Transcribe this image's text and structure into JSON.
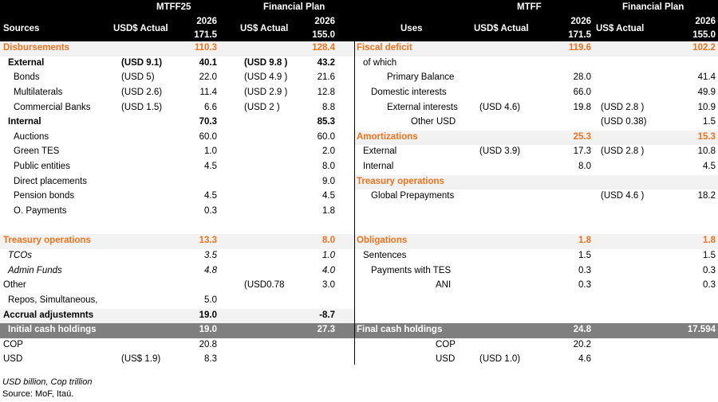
{
  "left": {
    "header": {
      "group1": "MTFF25",
      "group2": "Financial Plan",
      "label": "Sources",
      "col_actual1": "USD$ Actual",
      "col_year1": "2026",
      "col_total1": "171.5",
      "col_actual2": "US$ Actual",
      "col_year2": "2026",
      "col_total2": "155.0"
    },
    "rows": [
      {
        "label": "Disbursements",
        "a1": "",
        "v1": "110.3",
        "a2": "",
        "v2": "128.4",
        "style": "orange shade",
        "indent": 0
      },
      {
        "label": "External",
        "a1": "(USD 9.1)",
        "v1": "40.1",
        "a2": "(USD 9.8 )",
        "v2": "43.2",
        "style": "bold",
        "indent": 1
      },
      {
        "label": "Bonds",
        "a1": "(USD 5)",
        "v1": "22.0",
        "a2": "(USD 4.9 )",
        "v2": "21.6",
        "style": "",
        "indent": 2
      },
      {
        "label": "Multilaterals",
        "a1": "(USD 2.6)",
        "v1": "11.4",
        "a2": "(USD 2.9 )",
        "v2": "12.8",
        "style": "",
        "indent": 2
      },
      {
        "label": "Commercial Banks",
        "a1": "(USD 1.5)",
        "v1": "6.6",
        "a2": "(USD 2 )",
        "v2": "8.8",
        "style": "",
        "indent": 2
      },
      {
        "label": "Internal",
        "a1": "",
        "v1": "70.3",
        "a2": "",
        "v2": "85.3",
        "style": "bold",
        "indent": 1
      },
      {
        "label": "Auctions",
        "a1": "",
        "v1": "60.0",
        "a2": "",
        "v2": "60.0",
        "style": "",
        "indent": 2
      },
      {
        "label": "Green TES",
        "a1": "",
        "v1": "1.0",
        "a2": "",
        "v2": "2.0",
        "style": "",
        "indent": 2
      },
      {
        "label": "Public entities",
        "a1": "",
        "v1": "4.5",
        "a2": "",
        "v2": "8.0",
        "style": "",
        "indent": 2
      },
      {
        "label": "Direct placements",
        "a1": "",
        "v1": "",
        "a2": "",
        "v2": "9.0",
        "style": "",
        "indent": 2
      },
      {
        "label": "Pension bonds",
        "a1": "",
        "v1": "4.5",
        "a2": "",
        "v2": "4.5",
        "style": "",
        "indent": 2
      },
      {
        "label": "O. Payments",
        "a1": "",
        "v1": "0.3",
        "a2": "",
        "v2": "1.8",
        "style": "",
        "indent": 2
      },
      {
        "label": "",
        "a1": "",
        "v1": "",
        "a2": "",
        "v2": "",
        "style": "",
        "indent": 0
      },
      {
        "label": "Treasury operations",
        "a1": "",
        "v1": "13.3",
        "a2": "",
        "v2": "8.0",
        "style": "orange shade",
        "indent": 0
      },
      {
        "label": "TCOs",
        "a1": "",
        "v1": "3.5",
        "a2": "",
        "v2": "1.0",
        "style": "ital",
        "indent": 1
      },
      {
        "label": "Admin Funds",
        "a1": "",
        "v1": "4.8",
        "a2": "",
        "v2": "4.0",
        "style": "ital",
        "indent": 1
      },
      {
        "label": "Other",
        "a1": "",
        "v1": "",
        "a2": "(USD0.78",
        "v2": "3.0",
        "style": "",
        "indent": 0
      },
      {
        "label": "Repos, Simultaneous,",
        "a1": "",
        "v1": "5.0",
        "a2": "",
        "v2": "",
        "style": "",
        "indent": 1
      },
      {
        "label": "Accrual adjustemnts",
        "a1": "",
        "v1": "19.0",
        "a2": "",
        "v2": "-8.7",
        "style": "bold shade",
        "indent": 0
      },
      {
        "label": "Initial cash holdings",
        "a1": "",
        "v1": "19.0",
        "a2": "",
        "v2": "27.3",
        "style": "grey",
        "indent": 1
      },
      {
        "label": "COP",
        "a1": "",
        "v1": "20.8",
        "a2": "",
        "v2": "",
        "style": "",
        "indent": 0
      },
      {
        "label": "USD",
        "a1": "(US$ 1.9)",
        "v1": "8.3",
        "a2": "",
        "v2": "",
        "style": "",
        "indent": 0
      }
    ]
  },
  "right": {
    "header": {
      "group1": "MTFF",
      "group2": "Financial Plan",
      "label": "Uses",
      "col_actual1": "USD$ Actual",
      "col_year1": "2026",
      "col_total1": "171.5",
      "col_actual2": "US$ Actual",
      "col_year2": "2026",
      "col_total2": "155.0"
    },
    "rows": [
      {
        "label": "Fiscal deficit",
        "a1": "",
        "v1": "119.6",
        "a2": "",
        "v2": "102.2",
        "style": "orange shade",
        "indent": 0
      },
      {
        "label": "of which",
        "a1": "",
        "v1": "",
        "a2": "",
        "v2": "",
        "style": "",
        "indent": 1
      },
      {
        "label": "Primary Balance",
        "a1": "",
        "v1": "28.0",
        "a2": "",
        "v2": "41.4",
        "style": "",
        "indent": 3
      },
      {
        "label": "Domestic interests",
        "a1": "",
        "v1": "66.0",
        "a2": "",
        "v2": "49.9",
        "style": "",
        "indent": 2
      },
      {
        "label": "External interests",
        "a1": "(USD 4.6)",
        "v1": "19.8",
        "a2": "(USD 2.8 )",
        "v2": "10.9",
        "style": "",
        "indent": 3
      },
      {
        "label": "Other USD",
        "a1": "",
        "v1": "",
        "a2": "(USD 0.38)",
        "v2": "1.5",
        "style": "",
        "indent": 4
      },
      {
        "label": "Amortizations",
        "a1": "",
        "v1": "25.3",
        "a2": "",
        "v2": "15.3",
        "style": "orange shade",
        "indent": 0
      },
      {
        "label": "External",
        "a1": "(USD 3.9)",
        "v1": "17.3",
        "a2": "(USD 2.8 )",
        "v2": "10.8",
        "style": "",
        "indent": 1
      },
      {
        "label": "Internal",
        "a1": "",
        "v1": "8.0",
        "a2": "",
        "v2": "4.5",
        "style": "",
        "indent": 1
      },
      {
        "label": "Treasury operations",
        "a1": "",
        "v1": "",
        "a2": "",
        "v2": "",
        "style": "orange shade",
        "indent": 0
      },
      {
        "label": "Global Prepayments",
        "a1": "",
        "v1": "",
        "a2": "(USD 4.6 )",
        "v2": "18.2",
        "style": "",
        "indent": 2
      },
      {
        "label": "",
        "a1": "",
        "v1": "",
        "a2": "",
        "v2": "",
        "style": "",
        "indent": 0
      },
      {
        "label": "",
        "a1": "",
        "v1": "",
        "a2": "",
        "v2": "",
        "style": "",
        "indent": 0
      },
      {
        "label": "Obligations",
        "a1": "",
        "v1": "1.8",
        "a2": "",
        "v2": "1.8",
        "style": "orange shade",
        "indent": 0
      },
      {
        "label": "Sentences",
        "a1": "",
        "v1": "1.5",
        "a2": "",
        "v2": "1.5",
        "style": "",
        "indent": 1
      },
      {
        "label": "Payments with TES",
        "a1": "",
        "v1": "0.3",
        "a2": "",
        "v2": "0.3",
        "style": "",
        "indent": 2
      },
      {
        "label": "ANI",
        "a1": "",
        "v1": "0.3",
        "a2": "",
        "v2": "0.3",
        "style": "",
        "indent": 5
      },
      {
        "label": "",
        "a1": "",
        "v1": "",
        "a2": "",
        "v2": "",
        "style": "",
        "indent": 0
      },
      {
        "label": "",
        "a1": "",
        "v1": "",
        "a2": "",
        "v2": "",
        "style": "",
        "indent": 0
      },
      {
        "label": "Final cash holdings",
        "a1": "",
        "v1": "24.8",
        "a2": "",
        "v2": "17.594",
        "style": "grey",
        "indent": 0
      },
      {
        "label": "COP",
        "a1": "",
        "v1": "20.2",
        "a2": "",
        "v2": "",
        "style": "",
        "indent": 5
      },
      {
        "label": "USD",
        "a1": "(USD 1.0)",
        "v1": "4.6",
        "a2": "",
        "v2": "",
        "style": "",
        "indent": 5
      }
    ]
  },
  "footer": {
    "units": "USD billion, Cop trillion",
    "source": "Source: MoF, Itaú."
  }
}
